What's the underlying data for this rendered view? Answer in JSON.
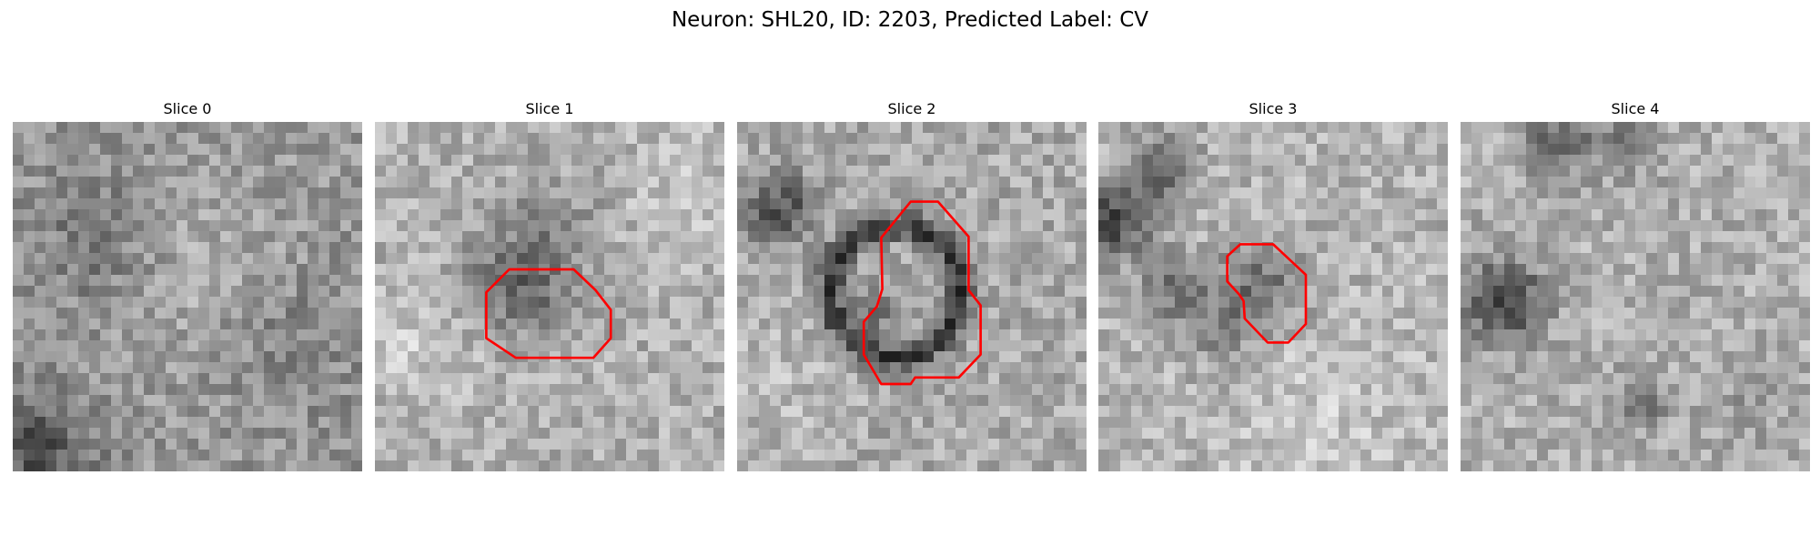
{
  "figure": {
    "title": "Neuron: SHL20, ID: 2203, Predicted Label: CV",
    "contour_color": "#ff0000"
  },
  "slices": [
    {
      "label": "Slice 0",
      "has_contour": false
    },
    {
      "label": "Slice 1",
      "has_contour": true
    },
    {
      "label": "Slice 2",
      "has_contour": true
    },
    {
      "label": "Slice 3",
      "has_contour": true
    },
    {
      "label": "Slice 4",
      "has_contour": false
    }
  ]
}
